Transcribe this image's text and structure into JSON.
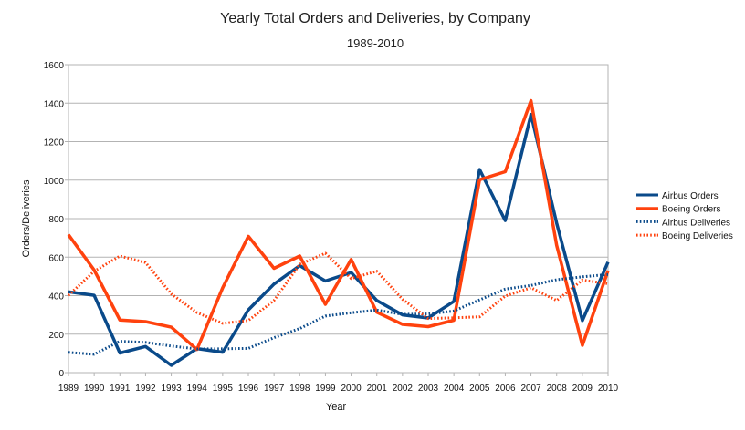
{
  "chart_data": {
    "type": "line",
    "title": "Yearly Total Orders and Deliveries, by Company",
    "subtitle": "1989-2010",
    "xlabel": "Year",
    "ylabel": "Orders/Deliveries",
    "categories": [
      "1989",
      "1990",
      "1991",
      "1992",
      "1993",
      "1994",
      "1995",
      "1996",
      "1997",
      "1998",
      "1999",
      "2000",
      "2001",
      "2002",
      "2003",
      "2004",
      "2005",
      "2006",
      "2007",
      "2008",
      "2009",
      "2010"
    ],
    "ylim": [
      0,
      1600
    ],
    "yticks": [
      0,
      200,
      400,
      600,
      800,
      1000,
      1200,
      1400,
      1600
    ],
    "ytick_labels": [
      "0",
      "200",
      "400",
      "600",
      "800",
      "1000",
      "1200",
      "1400",
      "1600"
    ],
    "grid": "horizontal",
    "legend_position": "right",
    "series": [
      {
        "name": "Airbus Orders",
        "style": "solid",
        "color": "#0a4a8a",
        "values": [
          420,
          402,
          102,
          136,
          38,
          125,
          106,
          326,
          460,
          556,
          476,
          520,
          375,
          300,
          284,
          370,
          1055,
          790,
          1341,
          777,
          271,
          574
        ]
      },
      {
        "name": "Boeing Orders",
        "style": "solid",
        "color": "#ff420e",
        "values": [
          716,
          533,
          273,
          265,
          236,
          120,
          441,
          708,
          542,
          606,
          355,
          588,
          314,
          251,
          239,
          272,
          1002,
          1044,
          1413,
          662,
          142,
          530
        ]
      },
      {
        "name": "Airbus Deliveries",
        "style": "dotted",
        "color": "#0a4a8a",
        "values": [
          105,
          95,
          163,
          157,
          138,
          123,
          124,
          126,
          182,
          229,
          294,
          311,
          325,
          303,
          305,
          320,
          378,
          434,
          453,
          483,
          498,
          510
        ]
      },
      {
        "name": "Boeing Deliveries",
        "style": "dotted",
        "color": "#ff420e",
        "values": [
          402,
          527,
          606,
          572,
          409,
          312,
          256,
          271,
          375,
          563,
          620,
          489,
          527,
          381,
          281,
          285,
          290,
          398,
          441,
          375,
          481,
          462
        ]
      }
    ]
  }
}
